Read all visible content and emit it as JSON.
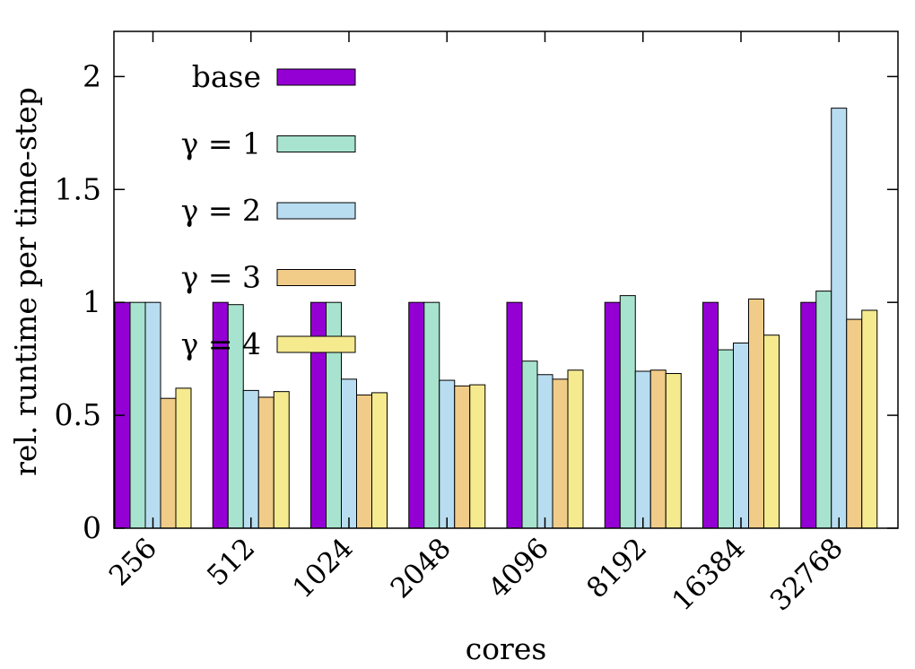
{
  "chart_data": {
    "type": "bar",
    "title": "",
    "xlabel": "cores",
    "ylabel": "rel. runtime per time-step",
    "ylim": [
      0,
      2.2
    ],
    "yticks": [
      {
        "value": 0,
        "label": "0"
      },
      {
        "value": 0.5,
        "label": "0.5"
      },
      {
        "value": 1,
        "label": "1"
      },
      {
        "value": 1.5,
        "label": "1.5"
      },
      {
        "value": 2,
        "label": "2"
      }
    ],
    "categories": [
      "256",
      "512",
      "1024",
      "2048",
      "4096",
      "8192",
      "16384",
      "32768"
    ],
    "legend_position": "top-left",
    "series": [
      {
        "name": "base",
        "legend_label": "base",
        "color": "#9400d3",
        "values": [
          1.0,
          1.0,
          1.0,
          1.0,
          1.0,
          1.0,
          1.0,
          1.0
        ]
      },
      {
        "name": "gamma=1",
        "legend_label": "γ = 1",
        "color": "#a8e3cf",
        "values": [
          1.0,
          0.99,
          1.0,
          1.0,
          0.74,
          1.03,
          0.79,
          1.05
        ]
      },
      {
        "name": "gamma=2",
        "legend_label": "γ = 2",
        "color": "#b8ddf0",
        "values": [
          1.0,
          0.61,
          0.66,
          0.655,
          0.68,
          0.695,
          0.82,
          1.86
        ]
      },
      {
        "name": "gamma=3",
        "legend_label": "γ = 3",
        "color": "#f1cc88",
        "values": [
          0.575,
          0.58,
          0.59,
          0.63,
          0.66,
          0.7,
          1.015,
          0.925
        ]
      },
      {
        "name": "gamma=4",
        "legend_label": "γ = 4",
        "color": "#f5ea8e",
        "values": [
          0.62,
          0.605,
          0.6,
          0.635,
          0.7,
          0.685,
          0.855,
          0.965
        ]
      }
    ]
  }
}
